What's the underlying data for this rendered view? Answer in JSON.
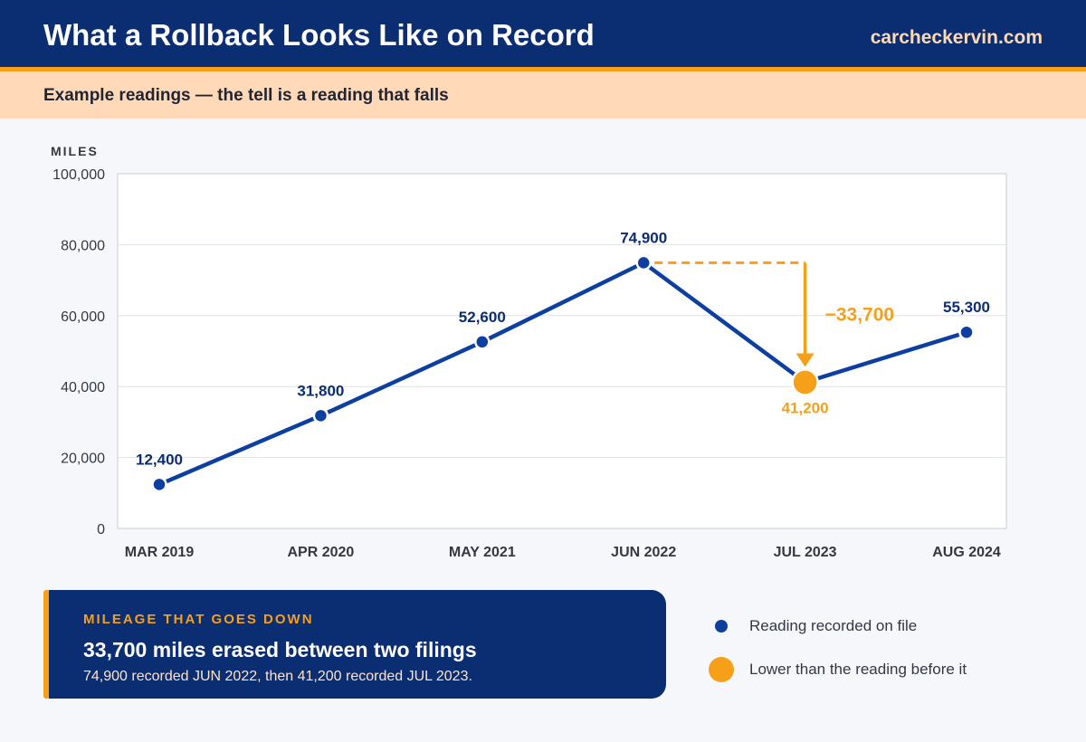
{
  "header": {
    "title": "What a Rollback Looks Like on Record",
    "brand": "carcheckervin.com",
    "subtitle": "Example readings — the tell is a reading that falls"
  },
  "chart_data": {
    "type": "line",
    "ylabel": "MILES",
    "ylim": [
      0,
      100000
    ],
    "yticks": [
      "0",
      "20,000",
      "40,000",
      "60,000",
      "80,000",
      "100,000"
    ],
    "yticks_values": [
      0,
      20000,
      40000,
      60000,
      80000,
      100000
    ],
    "categories": [
      "MAR 2019",
      "APR 2020",
      "MAY 2021",
      "JUN 2022",
      "JUL 2023",
      "AUG 2024"
    ],
    "values": [
      12400,
      31800,
      52600,
      74900,
      41200,
      55300
    ],
    "data_labels": [
      "12,400",
      "31,800",
      "52,600",
      "74,900",
      "41,200",
      "55,300"
    ],
    "grid": true,
    "highlight_index": 4,
    "drop_annotation": "−33,700",
    "colors": {
      "line": "#0c3fa0",
      "highlight": "#f6a01a",
      "label": "#0b2d72"
    }
  },
  "callout": {
    "kicker": "MILEAGE THAT GOES DOWN",
    "headline": "33,700 miles erased between two filings",
    "detail": "74,900 recorded JUN 2022, then 41,200 recorded JUL 2023."
  },
  "legend": {
    "items": [
      {
        "label": "Reading recorded on file"
      },
      {
        "label": "Lower than the reading before it"
      }
    ]
  }
}
